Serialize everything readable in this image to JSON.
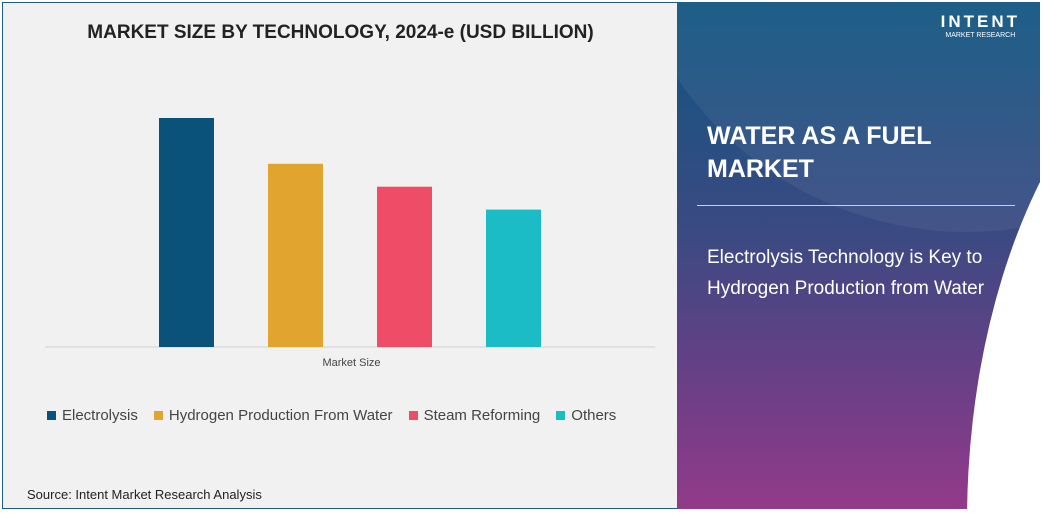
{
  "chart_data": {
    "type": "bar",
    "title": "MARKET SIZE BY TECHNOLOGY, 2024-e (USD BILLION)",
    "xlabel": "Market Size",
    "categories": [
      "Market Size"
    ],
    "series": [
      {
        "name": "Electrolysis",
        "values": [
          100
        ],
        "color": "#0b527b"
      },
      {
        "name": "Hydrogen Production From Water",
        "values": [
          80
        ],
        "color": "#e1a42e"
      },
      {
        "name": "Steam Reforming",
        "values": [
          70
        ],
        "color": "#ef4d67"
      },
      {
        "name": "Others",
        "values": [
          60
        ],
        "color": "#1bbcc5"
      }
    ],
    "legend": "bottom",
    "grid": false
  },
  "source": "Source: Intent Market Research Analysis",
  "panel": {
    "title": "WATER AS A FUEL MARKET",
    "subtitle": "Electrolysis Technology is Key to Hydrogen Production from Water"
  },
  "logo": {
    "name": "INTENT",
    "tag": "MARKET RESEARCH"
  }
}
